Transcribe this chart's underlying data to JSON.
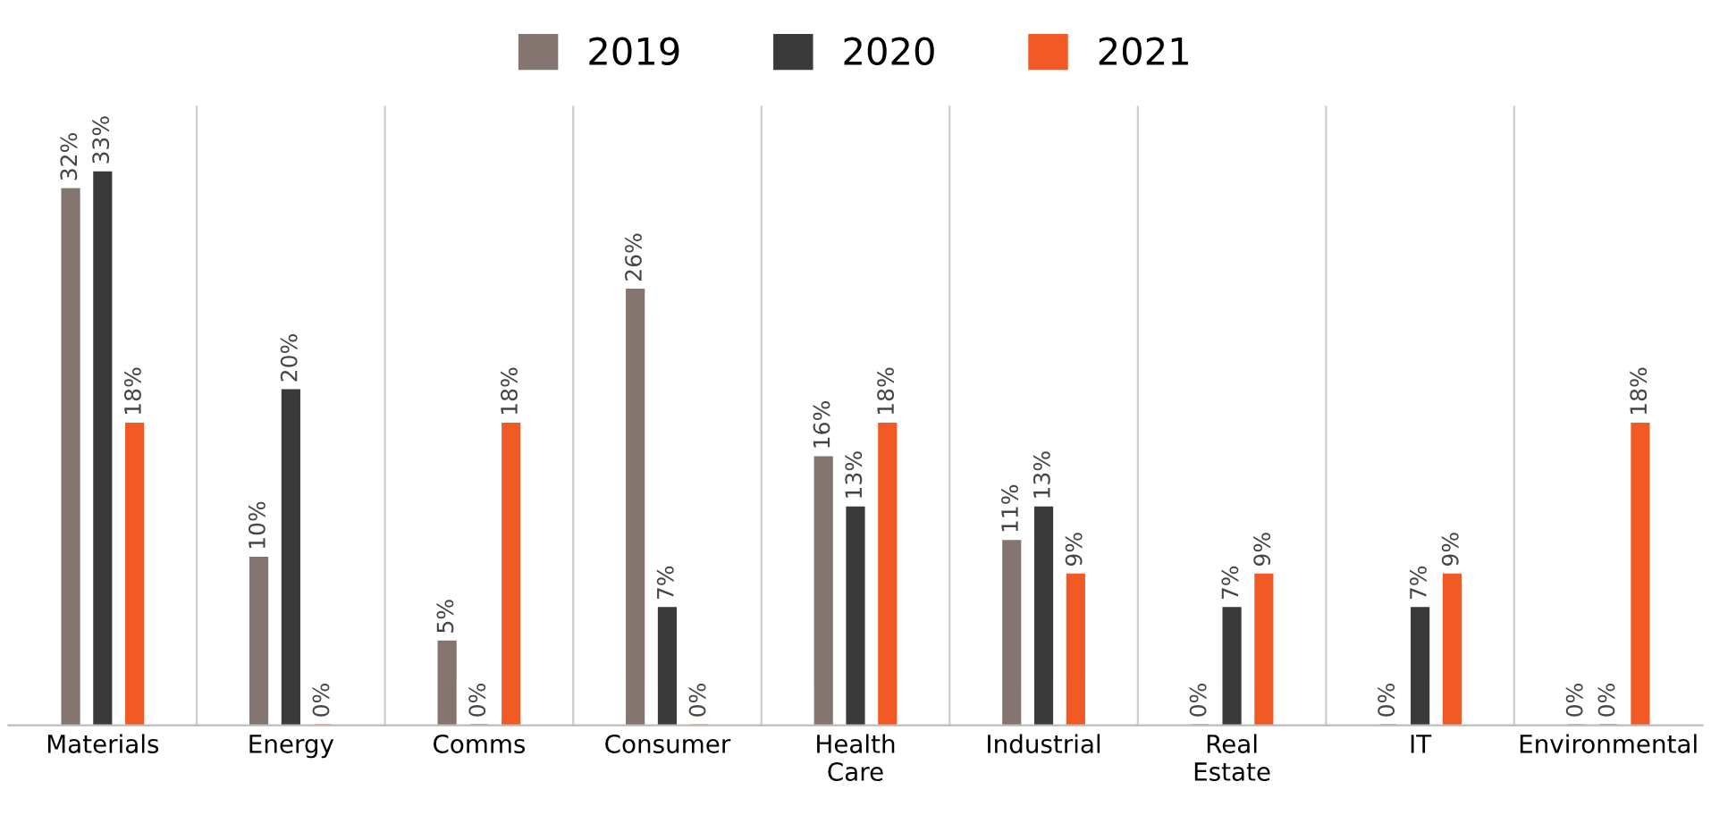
{
  "chart_data": {
    "type": "bar",
    "categories": [
      "Materials",
      "Energy",
      "Comms",
      "Consumer",
      "Health\nCare",
      "Industrial",
      "Real\nEstate",
      "IT",
      "Environmental"
    ],
    "series": [
      {
        "name": "2019",
        "color": "#857570",
        "values": [
          32,
          10,
          5,
          26,
          16,
          11,
          0,
          0,
          0
        ],
        "value_labels": [
          "32%",
          "10%",
          "5%",
          "26%",
          "16%",
          "11%",
          "0%",
          "0%",
          "0%"
        ]
      },
      {
        "name": "2020",
        "color": "#3a3a3a",
        "values": [
          33,
          20,
          0,
          7,
          13,
          13,
          7,
          7,
          0
        ],
        "value_labels": [
          "33%",
          "20%",
          "0%",
          "7%",
          "13%",
          "13%",
          "7%",
          "7%",
          "0%"
        ]
      },
      {
        "name": "2021",
        "color": "#f15a24",
        "values": [
          18,
          0,
          18,
          0,
          18,
          9,
          9,
          9,
          18
        ],
        "value_labels": [
          "18%",
          "0%",
          "18%",
          "0%",
          "18%",
          "9%",
          "9%",
          "9%",
          "18%"
        ]
      }
    ],
    "legend": "top",
    "grid": "x",
    "tick_labels": "x"
  }
}
